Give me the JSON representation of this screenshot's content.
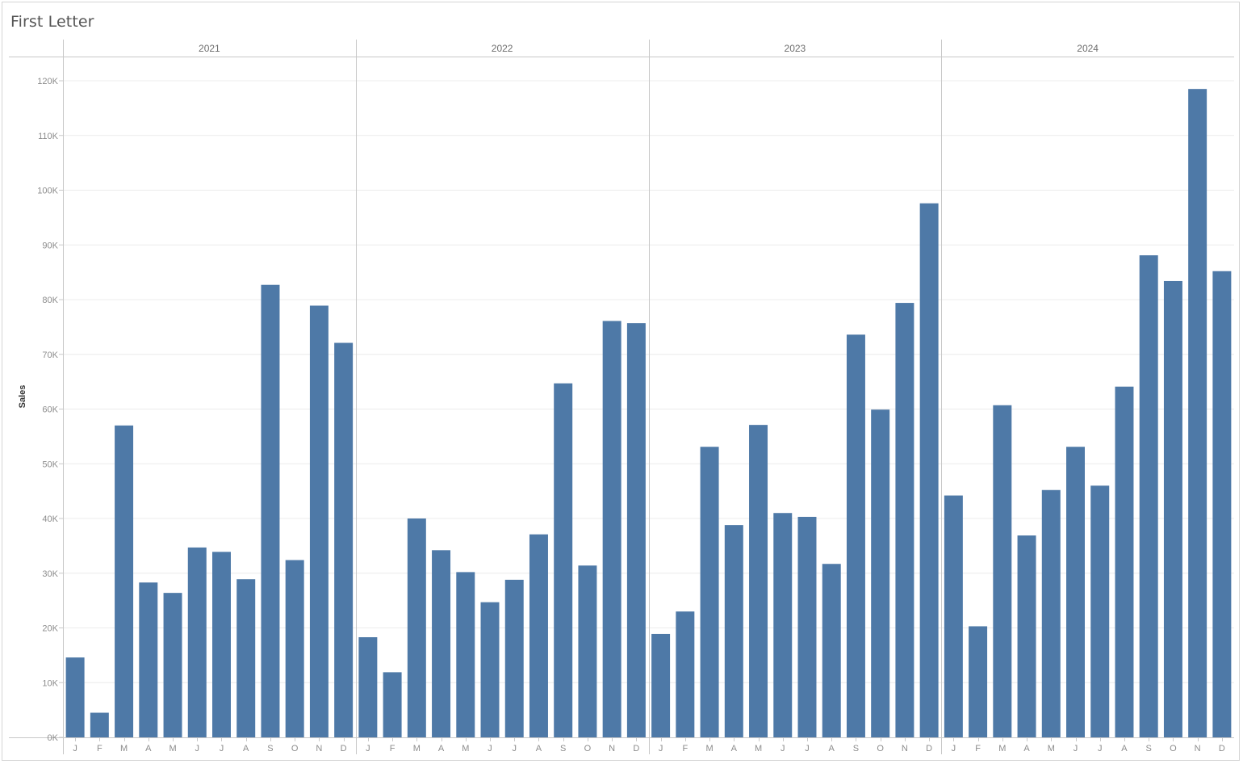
{
  "title": "First Letter",
  "chart_data": {
    "type": "bar",
    "ylabel": "Sales",
    "xlabel": "",
    "ylim": [
      0,
      125000
    ],
    "yticks": [
      0,
      10000,
      20000,
      30000,
      40000,
      50000,
      60000,
      70000,
      80000,
      90000,
      100000,
      110000,
      120000
    ],
    "ytick_labels": [
      "0K",
      "10K",
      "20K",
      "30K",
      "40K",
      "50K",
      "60K",
      "70K",
      "80K",
      "90K",
      "100K",
      "110K",
      "120K"
    ],
    "month_labels": [
      "J",
      "F",
      "M",
      "A",
      "M",
      "J",
      "J",
      "A",
      "S",
      "O",
      "N",
      "D"
    ],
    "bar_color": "#4e79a7",
    "grid": "horizontal",
    "panels": [
      {
        "year": "2021",
        "values": [
          14600,
          4500,
          57000,
          28300,
          26400,
          34700,
          33900,
          28900,
          82700,
          32400,
          78900,
          72100
        ]
      },
      {
        "year": "2022",
        "values": [
          18300,
          11900,
          40000,
          34200,
          30200,
          24700,
          28800,
          37100,
          64700,
          31400,
          76100,
          75700
        ]
      },
      {
        "year": "2023",
        "values": [
          18900,
          23000,
          53100,
          38800,
          57100,
          41000,
          40300,
          31700,
          73600,
          59900,
          79400,
          97600
        ]
      },
      {
        "year": "2024",
        "values": [
          44200,
          20300,
          60700,
          36900,
          45200,
          53100,
          46000,
          64100,
          88100,
          83400,
          118500,
          85200
        ]
      }
    ]
  }
}
